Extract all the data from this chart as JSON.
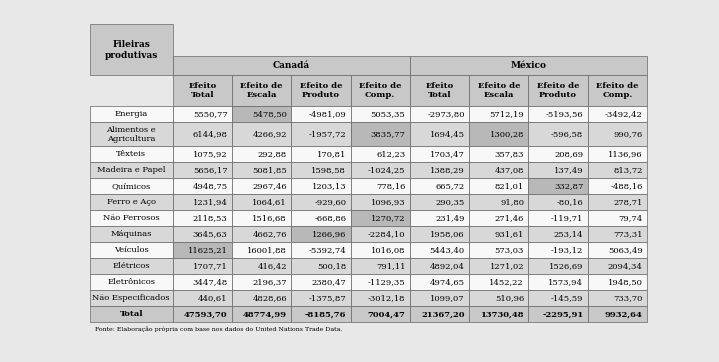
{
  "col_groups": [
    "Canadá",
    "México"
  ],
  "col_headers": [
    "Efeito\nTotal",
    "Efeito de\nEscala",
    "Efeito de\nProduto",
    "Efeito de\nComp.",
    "Efeito\nTotal",
    "Efeito de\nEscala",
    "Efeito de\nProduto",
    "Efeito de\nComp."
  ],
  "row_header": "Fileiras\nprodutivas",
  "rows": [
    [
      "Energia",
      "5550,77",
      "5478,50",
      "-4981,09",
      "5053,35",
      "-2973,80",
      "5712,19",
      "-5193,56",
      "-3492,42"
    ],
    [
      "Alimentos e\nAgricultura",
      "6144,98",
      "4266,92",
      "-1957,72",
      "3835,77",
      "1694,45",
      "1300,28",
      "-596,58",
      "990,76"
    ],
    [
      "Têxteis",
      "1075,92",
      "292,88",
      "170,81",
      "612,23",
      "1703,47",
      "357,83",
      "208,69",
      "1136,96"
    ],
    [
      "Madeira e Papel",
      "5656,17",
      "5081,85",
      "1598,58",
      "-1024,25",
      "1388,29",
      "437,08",
      "137,49",
      "813,72"
    ],
    [
      "Químicos",
      "4948,75",
      "2967,46",
      "1203,13",
      "778,16",
      "665,72",
      "821,01",
      "332,87",
      "-488,16"
    ],
    [
      "Ferro e Aço",
      "1231,94",
      "1064,61",
      "-929,60",
      "1096,93",
      "290,35",
      "91,80",
      "-80,16",
      "278,71"
    ],
    [
      "Não Ferrosos",
      "2118,53",
      "1516,68",
      "-668,86",
      "1270,72",
      "231,49",
      "271,46",
      "-119,71",
      "79,74"
    ],
    [
      "Máquinas",
      "3645,63",
      "4662,76",
      "1266,96",
      "-2284,10",
      "1958,06",
      "931,61",
      "253,14",
      "773,31"
    ],
    [
      "Veículos",
      "11625,21",
      "16001,88",
      "-5392,74",
      "1016,08",
      "5443,40",
      "573,03",
      "-193,12",
      "5063,49"
    ],
    [
      "Elétricos",
      "1707,71",
      "416,42",
      "500,18",
      "791,11",
      "4892,04",
      "1271,02",
      "1526,69",
      "2094,34"
    ],
    [
      "Eletrônicos",
      "3447,48",
      "2196,37",
      "2380,47",
      "-1129,35",
      "4974,65",
      "1452,22",
      "1573,94",
      "1948,50"
    ],
    [
      "Não Especificados",
      "440,61",
      "4828,66",
      "-1375,87",
      "-3012,18",
      "1099,07",
      "510,96",
      "-145,59",
      "733,70"
    ],
    [
      "Total",
      "47593,70",
      "48774,99",
      "-8185,76",
      "7004,47",
      "21367,20",
      "13730,48",
      "-2295,91",
      "9932,64"
    ]
  ],
  "footer": "Fonte: Elaboração própria com base nos dados do United Nations Trade Data.",
  "bg_color": "#e8e8e8",
  "header_bg": "#c8c8c8",
  "shade_light": "#d8d8d8",
  "shade_dark": "#b8b8b8",
  "white": "#f8f8f8",
  "total_bg": "#c8c8c8",
  "border_color": "#666666",
  "font_size": 6.0,
  "header_font_size": 6.5
}
